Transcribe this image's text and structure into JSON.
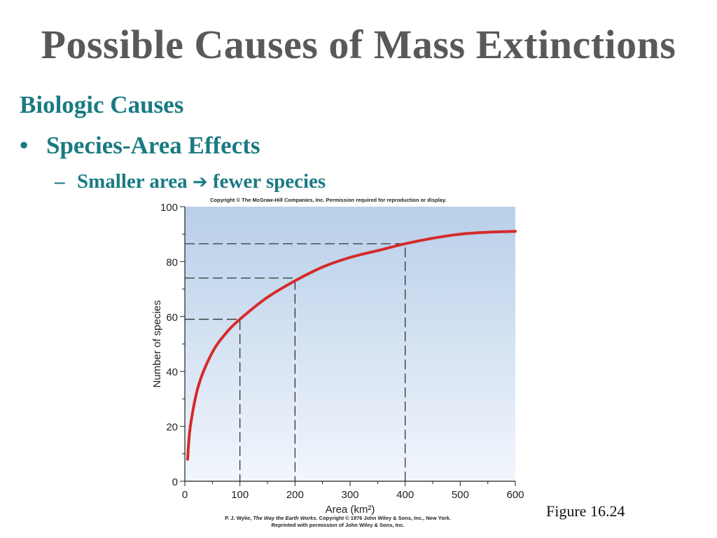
{
  "slide": {
    "title": "Possible Causes of Mass Extinctions",
    "heading": "Biologic Causes",
    "bullet_marker": "•",
    "bullet1": "Species-Area Effects",
    "sub_marker": "–",
    "sub_left": "Smaller area",
    "sub_arrow": "➔",
    "sub_right": "fewer species",
    "copyright": "Copyright © The McGraw-Hill Companies, Inc. Permission required for reproduction or display.",
    "credit_line1_a": "P. J. Wylie, ",
    "credit_line1_b": "The Way the Earth Works",
    "credit_line1_c": ". Copyright © 1976 John Wiley & Sons, Inc., New York.",
    "credit_line2": "Reprinted with permission of John Wiley & Sons, Inc.",
    "figure_label": "Figure 16.24"
  },
  "chart_data": {
    "type": "line",
    "title": "",
    "xlabel": "Area (km²)",
    "ylabel": "Number of species",
    "xlim": [
      0,
      600
    ],
    "ylim": [
      0,
      100
    ],
    "x_ticks": [
      "0",
      "100",
      "200",
      "300",
      "400",
      "500",
      "600"
    ],
    "y_ticks": [
      "0",
      "20",
      "40",
      "60",
      "80",
      "100"
    ],
    "grid": false,
    "background": "gradient light blue",
    "series": [
      {
        "color": "#d42b2b",
        "x": [
          5,
          10,
          25,
          50,
          75,
          100,
          150,
          200,
          250,
          300,
          350,
          400,
          450,
          500,
          550,
          600
        ],
        "y": [
          8,
          20,
          35,
          47,
          54,
          59,
          67,
          73,
          78,
          81.5,
          84,
          86.5,
          88.5,
          90,
          90.7,
          91
        ]
      }
    ],
    "reference_lines": [
      {
        "x": 100,
        "y": 59
      },
      {
        "x": 200,
        "y": 74
      },
      {
        "x": 400,
        "y": 86.5
      }
    ]
  }
}
